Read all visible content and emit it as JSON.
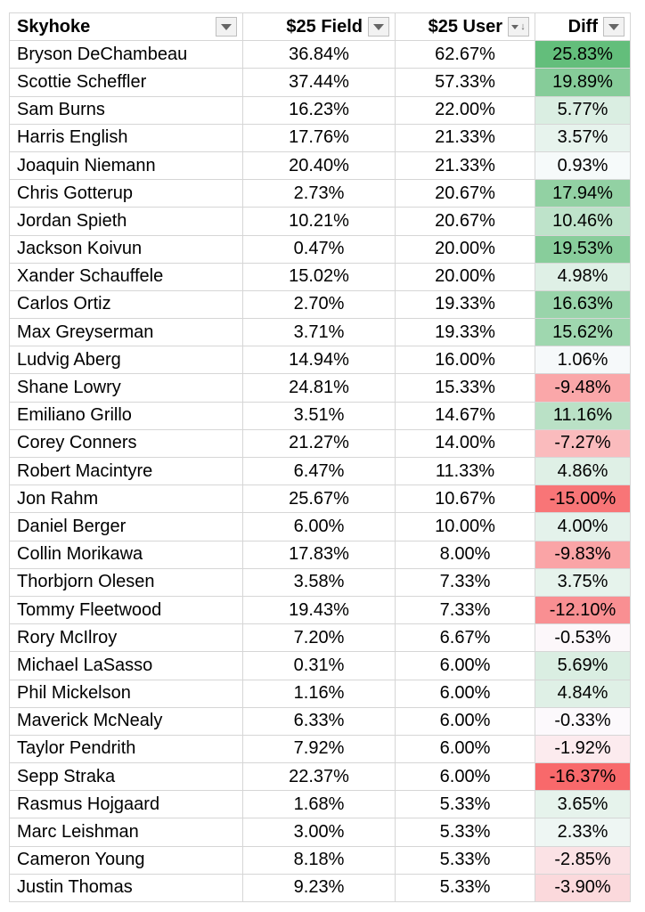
{
  "headers": {
    "name": "Skyhoke",
    "field": "$25 Field",
    "user": "$25 User",
    "diff": "Diff"
  },
  "colors": {
    "positive": "#63be7b",
    "negative": "#f8696b",
    "neutral": "#fcfcff"
  },
  "rows": [
    {
      "name": "Bryson DeChambeau",
      "field": "36.84%",
      "user": "62.67%",
      "diff": "25.83%",
      "diff_value": 25.83
    },
    {
      "name": "Scottie Scheffler",
      "field": "37.44%",
      "user": "57.33%",
      "diff": "19.89%",
      "diff_value": 19.89
    },
    {
      "name": "Sam Burns",
      "field": "16.23%",
      "user": "22.00%",
      "diff": "5.77%",
      "diff_value": 5.77
    },
    {
      "name": "Harris English",
      "field": "17.76%",
      "user": "21.33%",
      "diff": "3.57%",
      "diff_value": 3.57
    },
    {
      "name": "Joaquin Niemann",
      "field": "20.40%",
      "user": "21.33%",
      "diff": "0.93%",
      "diff_value": 0.93
    },
    {
      "name": "Chris Gotterup",
      "field": "2.73%",
      "user": "20.67%",
      "diff": "17.94%",
      "diff_value": 17.94
    },
    {
      "name": "Jordan Spieth",
      "field": "10.21%",
      "user": "20.67%",
      "diff": "10.46%",
      "diff_value": 10.46
    },
    {
      "name": "Jackson Koivun",
      "field": "0.47%",
      "user": "20.00%",
      "diff": "19.53%",
      "diff_value": 19.53
    },
    {
      "name": "Xander Schauffele",
      "field": "15.02%",
      "user": "20.00%",
      "diff": "4.98%",
      "diff_value": 4.98
    },
    {
      "name": "Carlos Ortiz",
      "field": "2.70%",
      "user": "19.33%",
      "diff": "16.63%",
      "diff_value": 16.63
    },
    {
      "name": "Max Greyserman",
      "field": "3.71%",
      "user": "19.33%",
      "diff": "15.62%",
      "diff_value": 15.62
    },
    {
      "name": "Ludvig Aberg",
      "field": "14.94%",
      "user": "16.00%",
      "diff": "1.06%",
      "diff_value": 1.06
    },
    {
      "name": "Shane Lowry",
      "field": "24.81%",
      "user": "15.33%",
      "diff": "-9.48%",
      "diff_value": -9.48
    },
    {
      "name": "Emiliano Grillo",
      "field": "3.51%",
      "user": "14.67%",
      "diff": "11.16%",
      "diff_value": 11.16
    },
    {
      "name": "Corey Conners",
      "field": "21.27%",
      "user": "14.00%",
      "diff": "-7.27%",
      "diff_value": -7.27
    },
    {
      "name": "Robert Macintyre",
      "field": "6.47%",
      "user": "11.33%",
      "diff": "4.86%",
      "diff_value": 4.86
    },
    {
      "name": "Jon Rahm",
      "field": "25.67%",
      "user": "10.67%",
      "diff": "-15.00%",
      "diff_value": -15.0
    },
    {
      "name": "Daniel Berger",
      "field": "6.00%",
      "user": "10.00%",
      "diff": "4.00%",
      "diff_value": 4.0
    },
    {
      "name": "Collin Morikawa",
      "field": "17.83%",
      "user": "8.00%",
      "diff": "-9.83%",
      "diff_value": -9.83
    },
    {
      "name": "Thorbjorn Olesen",
      "field": "3.58%",
      "user": "7.33%",
      "diff": "3.75%",
      "diff_value": 3.75
    },
    {
      "name": "Tommy Fleetwood",
      "field": "19.43%",
      "user": "7.33%",
      "diff": "-12.10%",
      "diff_value": -12.1
    },
    {
      "name": "Rory McIlroy",
      "field": "7.20%",
      "user": "6.67%",
      "diff": "-0.53%",
      "diff_value": -0.53
    },
    {
      "name": "Michael LaSasso",
      "field": "0.31%",
      "user": "6.00%",
      "diff": "5.69%",
      "diff_value": 5.69
    },
    {
      "name": "Phil Mickelson",
      "field": "1.16%",
      "user": "6.00%",
      "diff": "4.84%",
      "diff_value": 4.84
    },
    {
      "name": "Maverick McNealy",
      "field": "6.33%",
      "user": "6.00%",
      "diff": "-0.33%",
      "diff_value": -0.33
    },
    {
      "name": "Taylor Pendrith",
      "field": "7.92%",
      "user": "6.00%",
      "diff": "-1.92%",
      "diff_value": -1.92
    },
    {
      "name": "Sepp Straka",
      "field": "22.37%",
      "user": "6.00%",
      "diff": "-16.37%",
      "diff_value": -16.37
    },
    {
      "name": "Rasmus Hojgaard",
      "field": "1.68%",
      "user": "5.33%",
      "diff": "3.65%",
      "diff_value": 3.65
    },
    {
      "name": "Marc Leishman",
      "field": "3.00%",
      "user": "5.33%",
      "diff": "2.33%",
      "diff_value": 2.33
    },
    {
      "name": "Cameron Young",
      "field": "8.18%",
      "user": "5.33%",
      "diff": "-2.85%",
      "diff_value": -2.85
    },
    {
      "name": "Justin Thomas",
      "field": "9.23%",
      "user": "5.33%",
      "diff": "-3.90%",
      "diff_value": -3.9
    }
  ]
}
